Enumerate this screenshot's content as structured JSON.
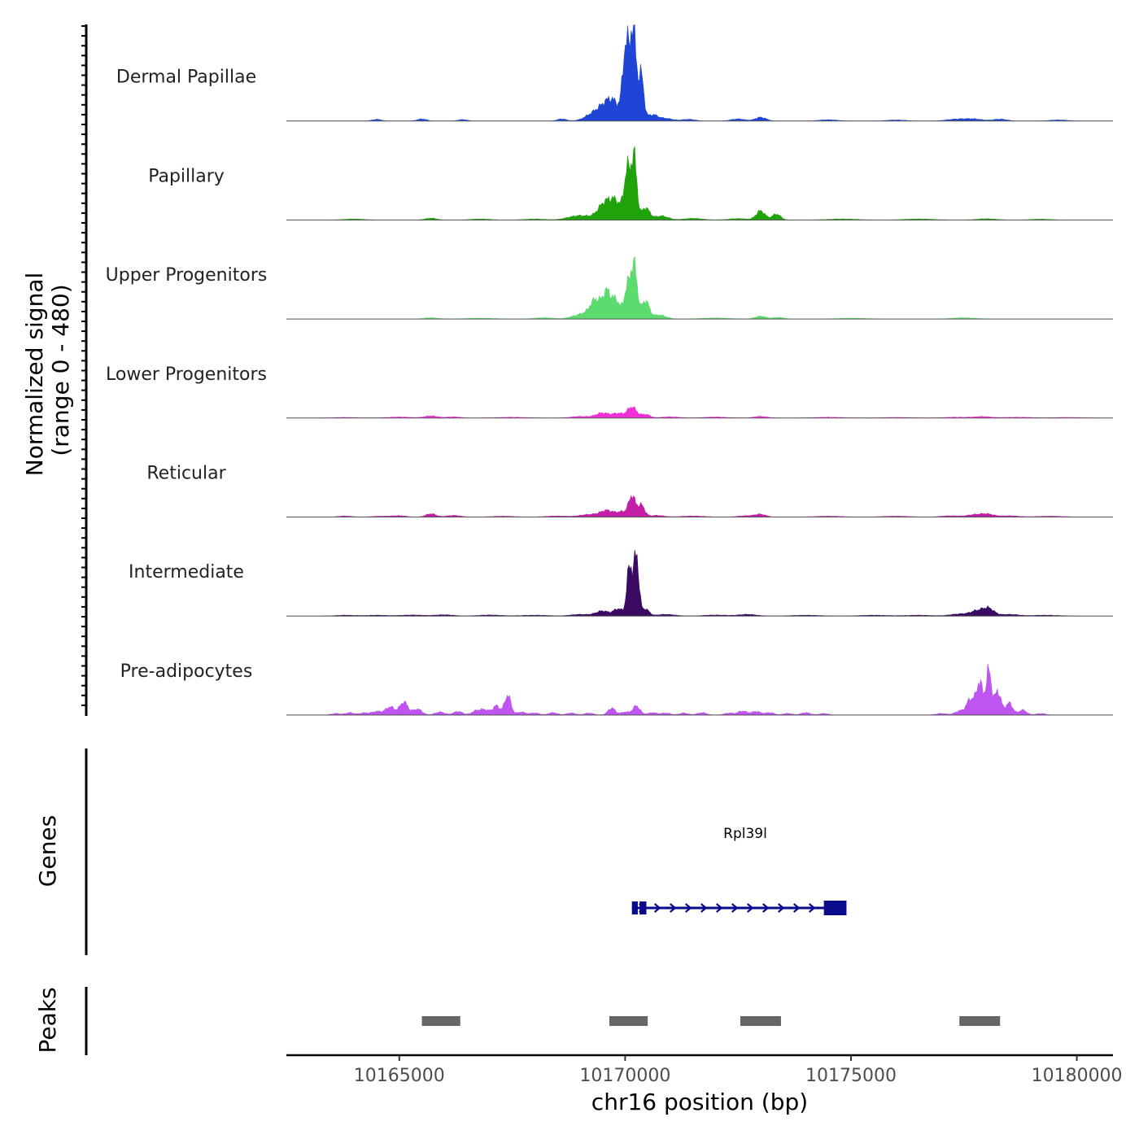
{
  "chart_data": {
    "type": "area",
    "title": "",
    "chromosome": "chr16",
    "xlabel": "chr16 position (bp)",
    "ylabel_line1": "Normalized signal",
    "ylabel_line2": "(range 0 - 480)",
    "ylim": [
      0,
      480
    ],
    "xlim": [
      10162500,
      10180800
    ],
    "x_ticks": [
      10165000,
      10170000,
      10175000,
      10180000
    ],
    "x_tick_labels": [
      "10165000",
      "10170000",
      "10175000",
      "10180000"
    ],
    "series": [
      {
        "name": "Dermal Papillae",
        "color": "#1f45d6",
        "peaks": [
          [
            10164500,
            8,
            100
          ],
          [
            10165500,
            10,
            100
          ],
          [
            10166400,
            7,
            100
          ],
          [
            10168600,
            10,
            100
          ],
          [
            10169300,
            35,
            180
          ],
          [
            10169550,
            55,
            150
          ],
          [
            10169750,
            80,
            140
          ],
          [
            10170020,
            380,
            70
          ],
          [
            10170180,
            470,
            60
          ],
          [
            10170350,
            230,
            60
          ],
          [
            10170600,
            30,
            120
          ],
          [
            10170900,
            12,
            150
          ],
          [
            10171400,
            8,
            150
          ],
          [
            10172500,
            10,
            150
          ],
          [
            10173000,
            18,
            120
          ],
          [
            10174500,
            6,
            200
          ],
          [
            10176000,
            5,
            200
          ],
          [
            10177300,
            8,
            200
          ],
          [
            10177700,
            10,
            200
          ],
          [
            10178300,
            9,
            150
          ],
          [
            10179600,
            5,
            200
          ]
        ]
      },
      {
        "name": "Papillary",
        "color": "#1fa20a",
        "peaks": [
          [
            10164000,
            5,
            200
          ],
          [
            10165700,
            9,
            120
          ],
          [
            10166800,
            5,
            200
          ],
          [
            10168000,
            5,
            200
          ],
          [
            10169000,
            22,
            250
          ],
          [
            10169550,
            80,
            150
          ],
          [
            10169800,
            80,
            130
          ],
          [
            10170050,
            240,
            70
          ],
          [
            10170200,
            300,
            60
          ],
          [
            10170450,
            60,
            90
          ],
          [
            10170800,
            20,
            150
          ],
          [
            10171500,
            8,
            200
          ],
          [
            10172500,
            7,
            200
          ],
          [
            10173000,
            45,
            100
          ],
          [
            10173350,
            30,
            90
          ],
          [
            10174800,
            5,
            300
          ],
          [
            10176500,
            5,
            300
          ],
          [
            10178000,
            6,
            200
          ],
          [
            10179200,
            4,
            200
          ]
        ]
      },
      {
        "name": "Upper Progenitors",
        "color": "#5cdb6e",
        "peaks": [
          [
            10165700,
            6,
            150
          ],
          [
            10166800,
            4,
            300
          ],
          [
            10168200,
            6,
            200
          ],
          [
            10169050,
            25,
            200
          ],
          [
            10169350,
            90,
            120
          ],
          [
            10169600,
            130,
            90
          ],
          [
            10169800,
            90,
            80
          ],
          [
            10170050,
            150,
            80
          ],
          [
            10170200,
            250,
            70
          ],
          [
            10170450,
            90,
            80
          ],
          [
            10170750,
            20,
            150
          ],
          [
            10172000,
            5,
            300
          ],
          [
            10173000,
            14,
            120
          ],
          [
            10173400,
            8,
            120
          ],
          [
            10175000,
            4,
            300
          ],
          [
            10177500,
            6,
            250
          ]
        ]
      },
      {
        "name": "Lower Progenitors",
        "color": "#f22fd6",
        "peaks": [
          [
            10163800,
            3,
            250
          ],
          [
            10165000,
            5,
            250
          ],
          [
            10165700,
            10,
            150
          ],
          [
            10166200,
            6,
            150
          ],
          [
            10167500,
            4,
            300
          ],
          [
            10169000,
            8,
            200
          ],
          [
            10169500,
            25,
            150
          ],
          [
            10169850,
            22,
            120
          ],
          [
            10170150,
            55,
            100
          ],
          [
            10170450,
            18,
            100
          ],
          [
            10171000,
            6,
            200
          ],
          [
            10172000,
            5,
            250
          ],
          [
            10173000,
            8,
            150
          ],
          [
            10174500,
            4,
            300
          ],
          [
            10176000,
            3,
            300
          ],
          [
            10177300,
            4,
            250
          ],
          [
            10177900,
            7,
            200
          ],
          [
            10178700,
            4,
            300
          ],
          [
            10179800,
            3,
            300
          ]
        ]
      },
      {
        "name": "Reticular",
        "color": "#c21ea8",
        "peaks": [
          [
            10163800,
            5,
            150
          ],
          [
            10164600,
            4,
            200
          ],
          [
            10165000,
            6,
            150
          ],
          [
            10165700,
            16,
            110
          ],
          [
            10166200,
            8,
            150
          ],
          [
            10167300,
            4,
            250
          ],
          [
            10168500,
            5,
            250
          ],
          [
            10169200,
            12,
            200
          ],
          [
            10169600,
            32,
            150
          ],
          [
            10169950,
            25,
            120
          ],
          [
            10170150,
            100,
            70
          ],
          [
            10170350,
            60,
            80
          ],
          [
            10170700,
            8,
            150
          ],
          [
            10171500,
            5,
            250
          ],
          [
            10172700,
            6,
            200
          ],
          [
            10173000,
            12,
            120
          ],
          [
            10174500,
            4,
            300
          ],
          [
            10176000,
            4,
            300
          ],
          [
            10177200,
            6,
            200
          ],
          [
            10177700,
            10,
            150
          ],
          [
            10178000,
            15,
            150
          ],
          [
            10178500,
            6,
            200
          ],
          [
            10179400,
            4,
            300
          ]
        ]
      },
      {
        "name": "Intermediate",
        "color": "#3b0a63",
        "peaks": [
          [
            10163800,
            4,
            200
          ],
          [
            10164500,
            4,
            250
          ],
          [
            10165300,
            5,
            250
          ],
          [
            10166000,
            6,
            200
          ],
          [
            10167000,
            5,
            250
          ],
          [
            10168000,
            4,
            300
          ],
          [
            10169000,
            8,
            200
          ],
          [
            10169500,
            25,
            150
          ],
          [
            10169850,
            35,
            100
          ],
          [
            10170100,
            250,
            60
          ],
          [
            10170250,
            300,
            55
          ],
          [
            10170450,
            35,
            80
          ],
          [
            10170900,
            8,
            200
          ],
          [
            10172000,
            5,
            250
          ],
          [
            10172700,
            8,
            200
          ],
          [
            10174000,
            4,
            300
          ],
          [
            10175500,
            4,
            300
          ],
          [
            10176500,
            4,
            300
          ],
          [
            10177400,
            10,
            200
          ],
          [
            10177800,
            25,
            150
          ],
          [
            10178050,
            35,
            120
          ],
          [
            10178500,
            8,
            200
          ],
          [
            10179300,
            4,
            300
          ]
        ]
      },
      {
        "name": "Pre-adipocytes",
        "color": "#bf55f0",
        "peaks": [
          [
            10163600,
            8,
            100
          ],
          [
            10163900,
            12,
            90
          ],
          [
            10164200,
            10,
            100
          ],
          [
            10164500,
            18,
            120
          ],
          [
            10164800,
            40,
            100
          ],
          [
            10165100,
            65,
            90
          ],
          [
            10165400,
            30,
            100
          ],
          [
            10165900,
            15,
            110
          ],
          [
            10166300,
            18,
            100
          ],
          [
            10166700,
            20,
            100
          ],
          [
            10166900,
            25,
            100
          ],
          [
            10167150,
            45,
            80
          ],
          [
            10167400,
            100,
            70
          ],
          [
            10167700,
            15,
            100
          ],
          [
            10168000,
            10,
            100
          ],
          [
            10168400,
            12,
            100
          ],
          [
            10168800,
            10,
            100
          ],
          [
            10169200,
            10,
            100
          ],
          [
            10169700,
            35,
            80
          ],
          [
            10170000,
            15,
            100
          ],
          [
            10170250,
            45,
            80
          ],
          [
            10170600,
            12,
            100
          ],
          [
            10170900,
            10,
            100
          ],
          [
            10171300,
            10,
            100
          ],
          [
            10171700,
            12,
            100
          ],
          [
            10172300,
            10,
            100
          ],
          [
            10172600,
            20,
            100
          ],
          [
            10172900,
            18,
            100
          ],
          [
            10173200,
            12,
            100
          ],
          [
            10173600,
            8,
            100
          ],
          [
            10174000,
            12,
            100
          ],
          [
            10174400,
            8,
            100
          ],
          [
            10177000,
            8,
            120
          ],
          [
            10177400,
            20,
            100
          ],
          [
            10177650,
            80,
            90
          ],
          [
            10177850,
            160,
            70
          ],
          [
            10178050,
            220,
            60
          ],
          [
            10178250,
            120,
            70
          ],
          [
            10178500,
            60,
            80
          ],
          [
            10178800,
            25,
            90
          ],
          [
            10179200,
            8,
            100
          ]
        ]
      }
    ],
    "genes_track_label": "Genes",
    "gene": {
      "name": "Rpl39l",
      "start": 10170150,
      "end": 10174900,
      "strand": "+",
      "color": "#0a0a8a",
      "exons": [
        [
          10170150,
          10170280
        ],
        [
          10170320,
          10170470
        ],
        [
          10174400,
          10174900
        ]
      ]
    },
    "peaks_track_label": "Peaks",
    "peak_color": "#666666",
    "peak_regions": [
      [
        10165500,
        10166350
      ],
      [
        10169650,
        10170500
      ],
      [
        10172550,
        10173450
      ],
      [
        10177400,
        10178300
      ]
    ]
  }
}
